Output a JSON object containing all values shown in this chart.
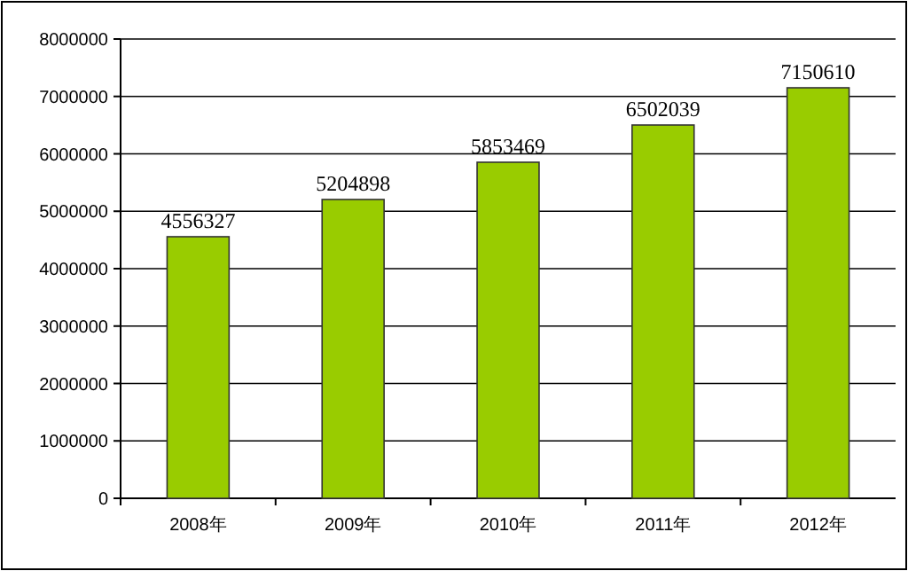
{
  "chart_data": {
    "type": "bar",
    "categories": [
      "2008年",
      "2009年",
      "2010年",
      "2011年",
      "2012年"
    ],
    "values": [
      4556327,
      5204898,
      5853469,
      6502039,
      7150610
    ],
    "color": "#99cc00",
    "ylim": [
      0,
      8000000
    ],
    "yticks": [
      0,
      1000000,
      2000000,
      3000000,
      4000000,
      5000000,
      6000000,
      7000000,
      8000000
    ],
    "grid": "y",
    "data_labels": true
  }
}
